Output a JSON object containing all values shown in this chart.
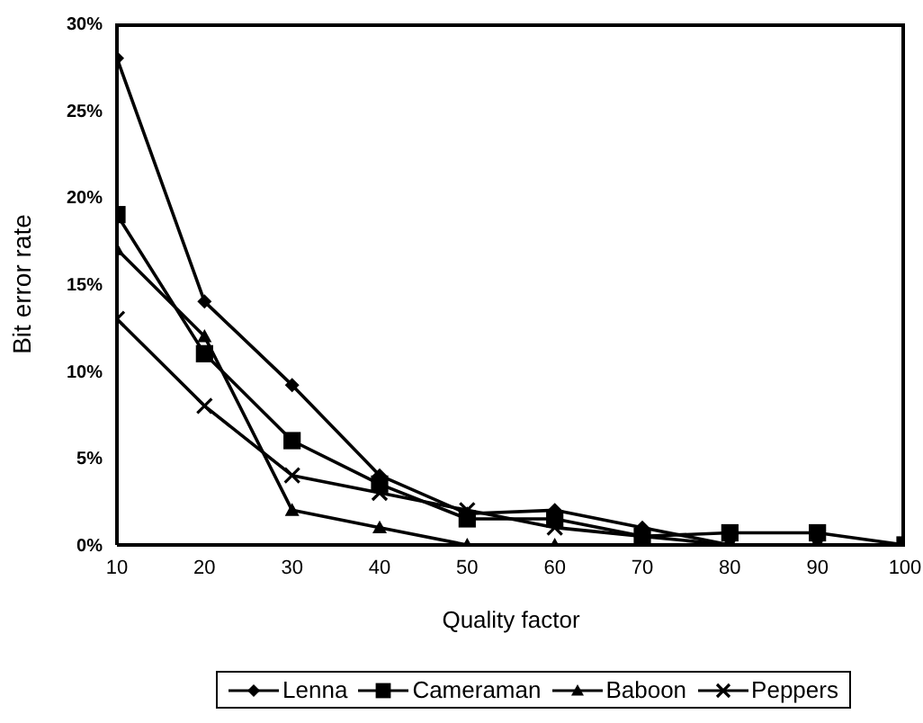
{
  "chart_data": {
    "type": "line",
    "xlabel": "Quality factor",
    "ylabel": "Bit error rate",
    "x": [
      10,
      20,
      30,
      40,
      50,
      60,
      70,
      80,
      90,
      100
    ],
    "series": [
      {
        "name": "Lenna",
        "color": "#000000",
        "marker": "diamond",
        "values": [
          28,
          14,
          9.2,
          4,
          1.8,
          2,
          1,
          0,
          0,
          0
        ]
      },
      {
        "name": "Cameraman",
        "color": "#000000",
        "marker": "square",
        "values": [
          19,
          11,
          6,
          3.5,
          1.5,
          1.5,
          0.5,
          0.7,
          0.7,
          0
        ]
      },
      {
        "name": "Baboon",
        "color": "#000000",
        "marker": "triangle",
        "values": [
          17,
          12,
          2,
          1,
          0,
          0,
          0,
          0,
          0,
          0
        ]
      },
      {
        "name": "Peppers",
        "color": "#000000",
        "marker": "cross",
        "values": [
          13,
          8,
          4,
          3,
          2,
          1,
          0.5,
          0,
          0,
          0
        ]
      }
    ],
    "xlim": [
      10,
      100
    ],
    "xticks": [
      10,
      20,
      30,
      40,
      50,
      60,
      70,
      80,
      90,
      100
    ],
    "ylim": [
      0,
      30
    ],
    "yticks": [
      {
        "value": 0,
        "label": "0%"
      },
      {
        "value": 5,
        "label": "5%"
      },
      {
        "value": 10,
        "label": "10%"
      },
      {
        "value": 15,
        "label": "15%"
      },
      {
        "value": 20,
        "label": "20%"
      },
      {
        "value": 25,
        "label": "25%"
      },
      {
        "value": 30,
        "label": "30%"
      }
    ],
    "grid": false,
    "legend": "bottom",
    "line_style": "solid"
  }
}
